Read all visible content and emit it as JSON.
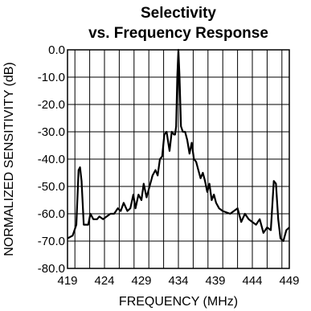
{
  "chart_data": {
    "type": "line",
    "title": "Selectivity",
    "subtitle": "vs. Frequency Response",
    "xlabel": "FREQUENCY (MHz)",
    "ylabel": "NORMALIZED SENSITIVITY (dB)",
    "xlim": [
      419,
      449
    ],
    "ylim": [
      -80,
      0
    ],
    "x_ticks": [
      "419",
      "424",
      "429",
      "434",
      "439",
      "444",
      "449"
    ],
    "y_ticks": [
      "0.0",
      "-10.0",
      "-20.0",
      "-30.0",
      "-40.0",
      "-50.0",
      "-60.0",
      "-70.0",
      "-80.0"
    ],
    "grid": true,
    "series": [
      {
        "x": [
          419.0,
          419.7,
          420.2,
          420.5,
          420.7,
          420.9,
          421.2,
          421.8,
          422.1,
          422.5,
          423.0,
          423.3,
          423.8,
          424.3,
          424.8,
          425.3,
          425.8,
          426.2,
          426.6,
          427.1,
          427.5,
          427.9,
          428.2,
          428.6,
          429.0,
          429.3,
          429.7,
          430.1,
          430.5,
          430.9,
          431.2,
          431.5,
          431.8,
          432.1,
          432.4,
          432.8,
          433.1,
          433.4,
          433.55,
          433.7,
          433.85,
          434.0,
          434.15,
          434.35,
          434.6,
          434.9,
          435.2,
          435.5,
          435.8,
          436.1,
          436.4,
          436.7,
          437.0,
          437.3,
          437.6,
          437.9,
          438.2,
          438.5,
          438.8,
          439.1,
          439.5,
          440.0,
          441.0,
          442.0,
          442.5,
          443.0,
          443.5,
          444.0,
          444.5,
          445.0,
          445.5,
          446.0,
          446.5,
          446.9,
          447.2,
          447.5,
          447.8,
          448.2,
          448.6,
          449.0
        ],
        "y": [
          -69,
          -68,
          -64,
          -44,
          -43,
          -48,
          -64,
          -64,
          -60,
          -62,
          -62,
          -61,
          -62,
          -61,
          -60,
          -60,
          -58,
          -59,
          -56,
          -59,
          -58,
          -53,
          -58,
          -53,
          -55,
          -49,
          -54,
          -50,
          -46,
          -44,
          -46,
          -40,
          -39,
          -31,
          -30,
          -37,
          -30,
          -31,
          -31,
          -28,
          -10,
          0,
          -10,
          -28,
          -30,
          -30,
          -33,
          -38,
          -34,
          -40,
          -41,
          -44,
          -47,
          -45,
          -48,
          -52,
          -49,
          -55,
          -53,
          -56,
          -58,
          -59,
          -60,
          -58,
          -63,
          -60,
          -62,
          -63,
          -64,
          -62,
          -67,
          -65,
          -66,
          -48,
          -49,
          -62,
          -69,
          -70,
          -66,
          -65
        ]
      }
    ]
  }
}
